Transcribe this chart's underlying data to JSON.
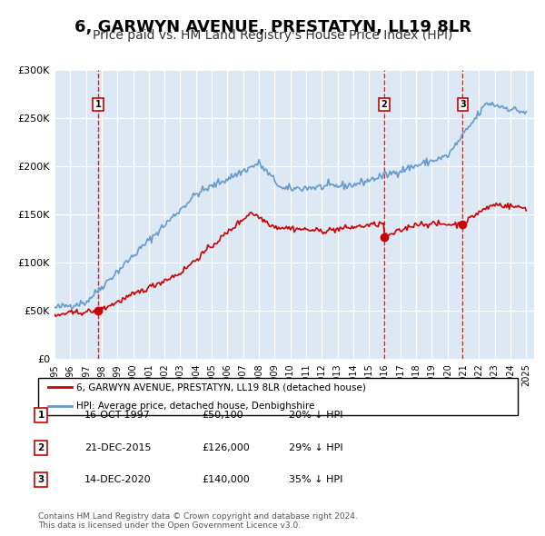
{
  "title": "6, GARWYN AVENUE, PRESTATYN, LL19 8LR",
  "subtitle": "Price paid vs. HM Land Registry's House Price Index (HPI)",
  "title_fontsize": 13,
  "subtitle_fontsize": 10,
  "background_color": "#ffffff",
  "plot_bg_color": "#dce9f5",
  "grid_color": "#ffffff",
  "ylabel": "",
  "xlabel": "",
  "ylim": [
    0,
    300000
  ],
  "ytick_labels": [
    "£0",
    "£50K",
    "£100K",
    "£150K",
    "£200K",
    "£250K",
    "£300K"
  ],
  "ytick_values": [
    0,
    50000,
    100000,
    150000,
    200000,
    250000,
    300000
  ],
  "legend_house_label": "6, GARWYN AVENUE, PRESTATYN, LL19 8LR (detached house)",
  "legend_hpi_label": "HPI: Average price, detached house, Denbighshire",
  "house_color": "#cc0000",
  "hpi_color": "#6699cc",
  "sale_marker_color": "#cc0000",
  "vline_color": "#cc0000",
  "transactions": [
    {
      "date": 1997.79,
      "price": 50100,
      "label": "1"
    },
    {
      "date": 2015.97,
      "price": 126000,
      "label": "2"
    },
    {
      "date": 2020.96,
      "price": 140000,
      "label": "3"
    }
  ],
  "table_rows": [
    {
      "num": "1",
      "date": "16-OCT-1997",
      "price": "£50,100",
      "hpi": "20% ↓ HPI"
    },
    {
      "num": "2",
      "date": "21-DEC-2015",
      "price": "£126,000",
      "hpi": "29% ↓ HPI"
    },
    {
      "num": "3",
      "date": "14-DEC-2020",
      "price": "£140,000",
      "hpi": "35% ↓ HPI"
    }
  ],
  "footer": "Contains HM Land Registry data © Crown copyright and database right 2024.\nThis data is licensed under the Open Government Licence v3.0.",
  "xmin": 1995.0,
  "xmax": 2025.5
}
